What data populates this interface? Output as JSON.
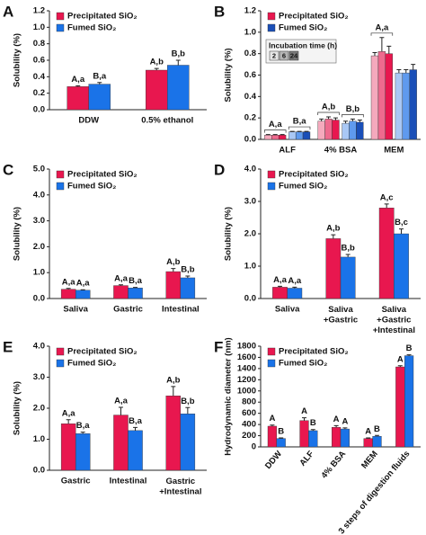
{
  "chart_data": [
    {
      "type": "bar",
      "panel": "A",
      "ylabel": "Solubility (%)",
      "categories": [
        "DDW",
        "0.5% ethanol"
      ],
      "ylim": [
        0,
        1.2
      ],
      "yticks": [
        {
          "value": 0,
          "label": "0.0"
        },
        {
          "value": 0.2,
          "label": "0.2"
        },
        {
          "value": 0.4,
          "label": "0.4"
        },
        {
          "value": 0.6,
          "label": "0.6"
        },
        {
          "value": 0.8,
          "label": "0.8"
        },
        {
          "value": 1,
          "label": "1.0"
        },
        {
          "value": 1.2,
          "label": "1.2"
        }
      ],
      "series": [
        {
          "name": "Precipitated SiO₂",
          "color": "#e8174f",
          "values": [
            0.28,
            0.48
          ],
          "errors": [
            0.01,
            0.02
          ],
          "labels": [
            "A,a",
            "A,b"
          ]
        },
        {
          "name": "Fumed SiO₂",
          "color": "#1a73e8",
          "values": [
            0.31,
            0.54
          ],
          "errors": [
            0.02,
            0.06
          ],
          "labels": [
            "B,a",
            "B,b"
          ]
        }
      ]
    },
    {
      "type": "bar",
      "panel": "B",
      "ylabel": "Solubility (%)",
      "categories": [
        "ALF",
        "4% BSA",
        "MEM"
      ],
      "ylim": [
        0,
        1.2
      ],
      "yticks": [
        {
          "value": 0,
          "label": "0.0"
        },
        {
          "value": 0.2,
          "label": "0.2"
        },
        {
          "value": 0.4,
          "label": "0.4"
        },
        {
          "value": 0.6,
          "label": "0.6"
        },
        {
          "value": 0.8,
          "label": "0.8"
        },
        {
          "value": 1,
          "label": "1.0"
        },
        {
          "value": 1.2,
          "label": "1.2"
        }
      ],
      "incubation": {
        "title": "Incubation time (h)",
        "times": [
          "2",
          "6",
          "24"
        ],
        "colors": [
          "#e6e6e6",
          "#b5b5b5",
          "#7a7a7a"
        ]
      },
      "series": [
        {
          "name": "Precipitated SiO₂",
          "color": "#e8174f",
          "labels": [
            "A,a",
            "A,b",
            "A,a"
          ],
          "times": [
            {
              "color": "#f5a9bd",
              "values": [
                0.04,
                0.17,
                0.78
              ],
              "errors": [
                0.005,
                0.02,
                0.03
              ]
            },
            {
              "color": "#ee6a8e",
              "values": [
                0.04,
                0.19,
                0.82
              ],
              "errors": [
                0.005,
                0.02,
                0.13
              ]
            },
            {
              "color": "#e8174f",
              "values": [
                0.04,
                0.18,
                0.8
              ],
              "errors": [
                0.005,
                0.02,
                0.07
              ]
            }
          ]
        },
        {
          "name": "Fumed SiO₂",
          "color": "#1a4fb8",
          "labels": [
            "B,a",
            "B,b",
            null
          ],
          "times": [
            {
              "color": "#a9c8f5",
              "values": [
                0.07,
                0.15,
                0.62
              ],
              "errors": [
                0.005,
                0.02,
                0.03
              ]
            },
            {
              "color": "#5f9aee",
              "values": [
                0.07,
                0.17,
                0.62
              ],
              "errors": [
                0.005,
                0.02,
                0.03
              ]
            },
            {
              "color": "#1a4fb8",
              "values": [
                0.07,
                0.16,
                0.65
              ],
              "errors": [
                0.005,
                0.02,
                0.05
              ]
            }
          ]
        }
      ]
    },
    {
      "type": "bar",
      "panel": "C",
      "ylabel": "Solubility (%)",
      "categories": [
        "Saliva",
        "Gastric",
        "Intestinal"
      ],
      "ylim": [
        0,
        5
      ],
      "yticks": [
        {
          "value": 0,
          "label": "0.0"
        },
        {
          "value": 1,
          "label": "1.0"
        },
        {
          "value": 2,
          "label": "2.0"
        },
        {
          "value": 3,
          "label": "3.0"
        },
        {
          "value": 4,
          "label": "4.0"
        },
        {
          "value": 5,
          "label": "5.0"
        }
      ],
      "series": [
        {
          "name": "Precipitated SiO₂",
          "color": "#e8174f",
          "values": [
            0.36,
            0.5,
            1.04
          ],
          "errors": [
            0.03,
            0.03,
            0.12
          ],
          "labels": [
            "A,a",
            "A,a",
            "A,b"
          ]
        },
        {
          "name": "Fumed SiO₂",
          "color": "#1a73e8",
          "values": [
            0.32,
            0.41,
            0.8
          ],
          "errors": [
            0.02,
            0.02,
            0.07
          ],
          "labels": [
            "A,a",
            "B,a",
            "B,b"
          ]
        }
      ]
    },
    {
      "type": "bar",
      "panel": "D",
      "ylabel": "Solubility (%)",
      "categories": [
        "Saliva",
        "Saliva\n+Gastric",
        "Saliva\n+Gastric\n+Intestinal"
      ],
      "ylim": [
        0,
        4
      ],
      "yticks": [
        {
          "value": 0,
          "label": "0.0"
        },
        {
          "value": 1,
          "label": "1.0"
        },
        {
          "value": 2,
          "label": "2.0"
        },
        {
          "value": 3,
          "label": "3.0"
        },
        {
          "value": 4,
          "label": "4.0"
        }
      ],
      "series": [
        {
          "name": "Precipitated SiO₂",
          "color": "#e8174f",
          "values": [
            0.35,
            1.85,
            2.8
          ],
          "errors": [
            0.03,
            0.12,
            0.12
          ],
          "labels": [
            "A,a",
            "A,b",
            "A,c"
          ]
        },
        {
          "name": "Fumed SiO₂",
          "color": "#1a73e8",
          "values": [
            0.32,
            1.28,
            2.0
          ],
          "errors": [
            0.03,
            0.08,
            0.15
          ],
          "labels": [
            "A,a",
            "B,b",
            "B,c"
          ]
        }
      ]
    },
    {
      "type": "bar",
      "panel": "E",
      "ylabel": "Solubility (%)",
      "categories": [
        "Gastric",
        "Intestinal",
        "Gastric\n+Intestinal"
      ],
      "ylim": [
        0,
        4
      ],
      "yticks": [
        {
          "value": 0,
          "label": "0.0"
        },
        {
          "value": 1,
          "label": "1.0"
        },
        {
          "value": 2,
          "label": "2.0"
        },
        {
          "value": 3,
          "label": "3.0"
        },
        {
          "value": 4,
          "label": "4.0"
        }
      ],
      "series": [
        {
          "name": "Precipitated SiO₂",
          "color": "#e8174f",
          "values": [
            1.5,
            1.78,
            2.4
          ],
          "errors": [
            0.13,
            0.25,
            0.3
          ],
          "labels": [
            "A,a",
            "A,a",
            "A,b"
          ]
        },
        {
          "name": "Fumed SiO₂",
          "color": "#1a73e8",
          "values": [
            1.18,
            1.28,
            1.82
          ],
          "errors": [
            0.05,
            0.1,
            0.2
          ],
          "labels": [
            "B,a",
            "B,a",
            "B,b"
          ]
        }
      ]
    },
    {
      "type": "bar",
      "panel": "F",
      "ylabel": "Hydrodynamic diameter (nm)",
      "categories": [
        "DDW",
        "ALF",
        "4% BSA",
        "MEM",
        "3 steps of digestion fluids"
      ],
      "xtick_rotation": 50,
      "ylim": [
        0,
        1800
      ],
      "yticks": [
        0,
        200,
        400,
        600,
        800,
        1000,
        1200,
        1400,
        1600,
        1800
      ],
      "series": [
        {
          "name": "Precipitated SiO₂",
          "color": "#e8174f",
          "values": [
            370,
            470,
            350,
            150,
            1430
          ],
          "errors": [
            20,
            50,
            30,
            10,
            20
          ],
          "labels": [
            "A",
            "A",
            "A",
            "A",
            "A"
          ]
        },
        {
          "name": "Fumed SiO₂",
          "color": "#1a73e8",
          "values": [
            150,
            290,
            320,
            190,
            1630
          ],
          "errors": [
            10,
            20,
            20,
            15,
            15
          ],
          "labels": [
            "B",
            "B",
            "A",
            "B",
            "B"
          ]
        }
      ]
    }
  ]
}
